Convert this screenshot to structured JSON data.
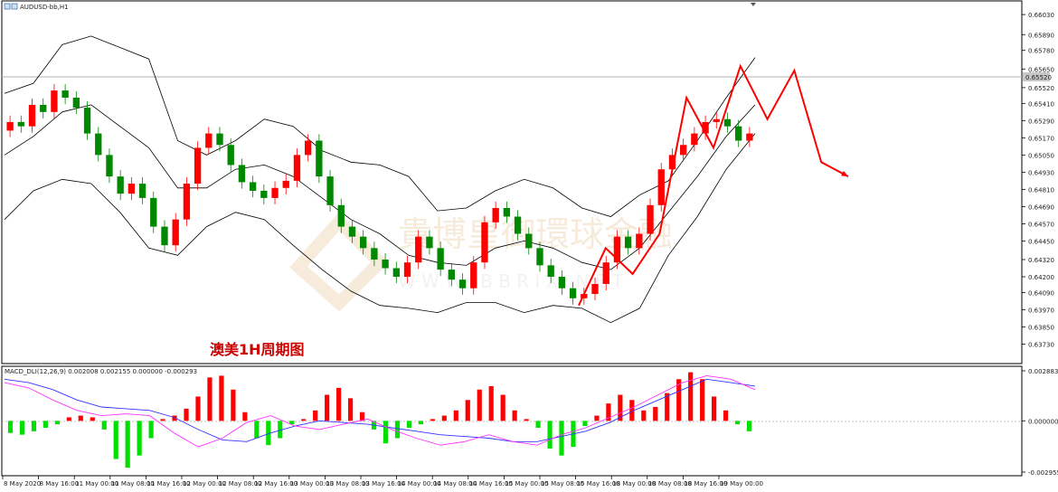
{
  "symbol_title": "AUDUSD-bb,H1",
  "annotation_text": "澳美1H周期图",
  "watermark": {
    "cn": "貴博皇御環球金融",
    "url": "W W W . B B R I X . N E T"
  },
  "macd_label": "MACD_DLI(12,26,9) 0.002008 0.002155 0.000000 -0.000293",
  "current_price": "0.65520",
  "colors": {
    "bull": "#ff0000",
    "bear": "#008800",
    "band": "#000000",
    "hist_pos": "#ff0000",
    "hist_neg": "#00e000",
    "macd_line": "#3333ff",
    "signal_line": "#ff33ff",
    "forecast": "#ff0000"
  },
  "chart_data": [
    {
      "type": "candlestick",
      "title": "AUDUSD-bb,H1",
      "y_ticks": [
        "0.66030",
        "0.65890",
        "0.65780",
        "0.65650",
        "0.65520",
        "0.65410",
        "0.65290",
        "0.65170",
        "0.65050",
        "0.64930",
        "0.64810",
        "0.64690",
        "0.64570",
        "0.64450",
        "0.64320",
        "0.64200",
        "0.64090",
        "0.63970",
        "0.63850",
        "0.63730"
      ],
      "ylim": [
        0.6367,
        0.661
      ],
      "x_ticks": [
        "8 May 2020",
        "8 May 16:00",
        "11 May 00:00",
        "11 May 08:00",
        "11 May 16:00",
        "12 May 00:00",
        "12 May 08:00",
        "12 May 16:00",
        "13 May 00:00",
        "13 May 08:00",
        "13 May 16:00",
        "14 May 00:00",
        "14 May 08:00",
        "14 May 16:00",
        "15 May 00:00",
        "15 May 08:00",
        "15 May 16:00",
        "18 May 00:00",
        "18 May 08:00",
        "18 May 16:00",
        "19 May 00:00"
      ],
      "series": [
        {
          "name": "price_close_path",
          "values": [
            0.6528,
            0.6525,
            0.654,
            0.6535,
            0.655,
            0.6545,
            0.6538,
            0.652,
            0.6505,
            0.649,
            0.6478,
            0.6485,
            0.6475,
            0.6455,
            0.6442,
            0.646,
            0.6485,
            0.651,
            0.652,
            0.6512,
            0.6498,
            0.6486,
            0.648,
            0.6475,
            0.6482,
            0.6487,
            0.6505,
            0.6515,
            0.649,
            0.647,
            0.6455,
            0.6448,
            0.644,
            0.6432,
            0.6426,
            0.642,
            0.643,
            0.6448,
            0.644,
            0.6425,
            0.6418,
            0.6412,
            0.643,
            0.6458,
            0.6468,
            0.6462,
            0.645,
            0.644,
            0.6428,
            0.642,
            0.6412,
            0.6405,
            0.6408,
            0.6415,
            0.643,
            0.6448,
            0.644,
            0.645,
            0.647,
            0.6495,
            0.6505,
            0.6512,
            0.652,
            0.6528,
            0.653,
            0.6525,
            0.6515,
            0.652
          ]
        },
        {
          "name": "upper_band",
          "values": [
            0.6548,
            0.6555,
            0.6582,
            0.6588,
            0.658,
            0.6572,
            0.6515,
            0.6505,
            0.6515,
            0.653,
            0.6525,
            0.6508,
            0.65,
            0.6498,
            0.649,
            0.6466,
            0.6468,
            0.648,
            0.6488,
            0.6482,
            0.6468,
            0.6462,
            0.6477,
            0.6487,
            0.6515,
            0.6545,
            0.6573
          ]
        },
        {
          "name": "middle_band",
          "values": [
            0.6505,
            0.6518,
            0.6535,
            0.654,
            0.6525,
            0.651,
            0.6482,
            0.6482,
            0.6495,
            0.6498,
            0.649,
            0.6475,
            0.646,
            0.645,
            0.6435,
            0.643,
            0.6428,
            0.644,
            0.6445,
            0.644,
            0.643,
            0.6425,
            0.644,
            0.6465,
            0.649,
            0.6518,
            0.654
          ]
        },
        {
          "name": "lower_band",
          "values": [
            0.646,
            0.648,
            0.6488,
            0.6485,
            0.6465,
            0.644,
            0.6435,
            0.6455,
            0.6465,
            0.646,
            0.6442,
            0.6425,
            0.641,
            0.64,
            0.6398,
            0.6395,
            0.6402,
            0.6402,
            0.6395,
            0.64,
            0.6398,
            0.6388,
            0.6398,
            0.6435,
            0.6462,
            0.6495,
            0.652
          ]
        },
        {
          "name": "forecast_path",
          "values": [
            0.64,
            0.644,
            0.6422,
            0.645,
            0.6545,
            0.651,
            0.6567,
            0.653,
            0.6564,
            0.65,
            0.649
          ]
        }
      ]
    },
    {
      "type": "bar",
      "title": "MACD_DLI(12,26,9)",
      "y_ticks": [
        "0.002883",
        "0.000000",
        "-0.002955"
      ],
      "ylim": [
        -0.002955,
        0.002883
      ],
      "series": [
        {
          "name": "histogram",
          "values": [
            -0.0007,
            -0.0008,
            -0.0006,
            -0.0004,
            -0.0002,
            0.0002,
            0.0003,
            0.0002,
            -0.0005,
            -0.0022,
            -0.0027,
            -0.002,
            -0.001,
            0.0001,
            0.0003,
            0.0007,
            0.0014,
            0.0025,
            0.0026,
            0.0018,
            0.0005,
            -0.001,
            -0.0014,
            -0.001,
            -0.0002,
            0.0001,
            0.0006,
            0.0015,
            0.0019,
            0.0013,
            0.0005,
            -0.0005,
            -0.0013,
            -0.001,
            -0.0004,
            -0.0002,
            0.0001,
            0.0003,
            0.0006,
            0.0012,
            0.0018,
            0.002,
            0.0015,
            0.0006,
            0.0001,
            -0.0004,
            -0.0016,
            -0.002,
            -0.0015,
            -0.0003,
            0.0003,
            0.001,
            0.0015,
            0.0012,
            0.0006,
            0.0008,
            0.0016,
            0.0024,
            0.0028,
            0.0024,
            0.0014,
            0.0006,
            -0.0002,
            -0.0006
          ]
        },
        {
          "name": "macd_line",
          "values": [
            0.0024,
            0.0022,
            0.0018,
            0.0012,
            0.0008,
            0.0007,
            0.0006,
            0.0002,
            -0.0005,
            -0.0011,
            -0.0012,
            -0.0007,
            -0.0003,
            0.0,
            -0.0001,
            -0.0002,
            -0.0004,
            -0.0006,
            -0.0008,
            -0.0009,
            -0.001,
            -0.0012,
            -0.0012,
            -0.0009,
            -0.0006,
            -0.0001,
            0.0006,
            0.0012,
            0.0018,
            0.0024,
            0.0022,
            0.002
          ]
        },
        {
          "name": "signal_line",
          "values": [
            0.0022,
            0.0019,
            0.0012,
            0.0006,
            0.0003,
            0.0004,
            0.0003,
            -0.0007,
            -0.0015,
            -0.001,
            -0.0001,
            0.0003,
            -0.0003,
            -0.0005,
            -0.0002,
            0.0001,
            -0.0005,
            -0.001,
            -0.0014,
            -0.0012,
            -0.0008,
            -0.0012,
            -0.0014,
            -0.0008,
            -0.0004,
            0.0002,
            0.0008,
            0.0015,
            0.0022,
            0.0026,
            0.0024,
            0.0018
          ]
        }
      ]
    }
  ]
}
